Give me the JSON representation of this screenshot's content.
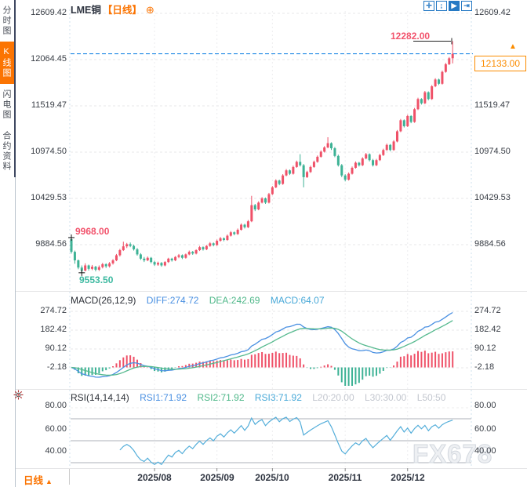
{
  "sidebar": {
    "tabs": [
      {
        "label": "分时图",
        "active": false
      },
      {
        "label": "K线图",
        "active": true
      },
      {
        "label": "闪电图",
        "active": false
      },
      {
        "label": "合约资料",
        "active": false
      }
    ]
  },
  "header": {
    "symbol": "LME铜",
    "period_tag": "【日线】",
    "add_glyph": "⊕"
  },
  "toolbar": {
    "items": [
      {
        "name": "crosshair-icon",
        "glyph": "✛",
        "active": false
      },
      {
        "name": "axis-zoom-icon",
        "glyph": "↨",
        "active": false
      },
      {
        "name": "pan-icon",
        "glyph": "▶",
        "active": true
      },
      {
        "name": "exit-chart-icon",
        "glyph": "⇥",
        "active": false
      }
    ]
  },
  "main_chart": {
    "left_axis": [
      "12609.42",
      "12064.45",
      "11519.47",
      "10974.50",
      "10429.53",
      "9884.56"
    ],
    "right_axis": [
      "12609.42",
      "11519.47",
      "10974.50",
      "10429.53",
      "9884.56"
    ],
    "current_price": "12133.00",
    "current_price_arrow": "▲",
    "high_annotation": "12282.00",
    "first_high_label": "9968.00",
    "low_label": "9553.50"
  },
  "macd_panel": {
    "title": "MACD(26,12,9)",
    "diff_label": "DIFF:274.72",
    "dea_label": "DEA:242.69",
    "macd_label": "MACD:64.07",
    "left_axis": [
      "274.72",
      "182.42",
      "90.12",
      "-2.18"
    ],
    "right_axis": [
      "274.72",
      "182.42",
      "90.12",
      "-2.18"
    ]
  },
  "rsi_panel": {
    "title": "RSI(14,14,14)",
    "rsi1_label": "RSI1:71.92",
    "rsi2_label": "RSI2:71.92",
    "rsi3_label": "RSI3:71.92",
    "l20_label": "L20:20.00",
    "l30_label": "L30:30.00",
    "l50_label": "L50:50",
    "left_axis": [
      "80.00",
      "60.00",
      "40.00"
    ],
    "right_axis": [
      "80.00",
      "60.00",
      "40.00"
    ]
  },
  "bottom_bar": {
    "period": "日线",
    "period_arrow": "▲",
    "dates": [
      "2025/08",
      "2025/09",
      "2025/10",
      "2025/11",
      "2025/12"
    ]
  },
  "watermark": "FX678",
  "colors": {
    "up": "#ef5168",
    "down": "#3db295",
    "accent": "#fb7402",
    "diff_line": "#4a90e2",
    "dea_line": "#55b98e",
    "rsi_line": "#54aeda",
    "current_line": "#1e88e5",
    "annotation": "#222222"
  },
  "chart_data": {
    "type": "candlestick",
    "symbol": "LME铜",
    "period": "日线",
    "title": "LME铜【日线】",
    "y_axis_values": [
      12609.42,
      12064.45,
      11519.47,
      10974.5,
      10429.53,
      9884.56
    ],
    "price_high": 12282.0,
    "price_low": 9553.5,
    "first_bar_high": 9968.0,
    "last_close": 12133.0,
    "month_labels": [
      "2025/08",
      "2025/09",
      "2025/10",
      "2025/11",
      "2025/12"
    ],
    "month_start_indices": [
      24,
      42,
      58,
      79,
      97
    ],
    "macd": {
      "fast": 26,
      "slow": 12,
      "signal": 9,
      "diff": 274.72,
      "dea": 242.69,
      "macd": 64.07,
      "axis_values": [
        274.72,
        182.42,
        90.12,
        -2.18
      ]
    },
    "rsi": {
      "periods": [
        14,
        14,
        14
      ],
      "rsi1": 71.92,
      "rsi2": 71.92,
      "rsi3": 71.92,
      "levels": [
        80,
        60,
        40
      ],
      "thresholds": {
        "L20": 20.0,
        "L30": 30.0,
        "L50": 50
      }
    },
    "candles": [
      [
        9950,
        9968,
        9780,
        9800
      ],
      [
        9800,
        9815,
        9660,
        9700
      ],
      [
        9700,
        9710,
        9595,
        9615
      ],
      [
        9615,
        9640,
        9553.5,
        9580
      ],
      [
        9580,
        9665,
        9570,
        9640
      ],
      [
        9640,
        9650,
        9580,
        9600
      ],
      [
        9600,
        9645,
        9585,
        9625
      ],
      [
        9625,
        9635,
        9570,
        9590
      ],
      [
        9590,
        9640,
        9575,
        9620
      ],
      [
        9620,
        9670,
        9605,
        9655
      ],
      [
        9655,
        9665,
        9610,
        9630
      ],
      [
        9630,
        9680,
        9615,
        9665
      ],
      [
        9665,
        9715,
        9650,
        9700
      ],
      [
        9700,
        9775,
        9690,
        9760
      ],
      [
        9760,
        9835,
        9745,
        9820
      ],
      [
        9820,
        9920,
        9810,
        9865
      ],
      [
        9865,
        9905,
        9845,
        9890
      ],
      [
        9890,
        9910,
        9855,
        9870
      ],
      [
        9870,
        9885,
        9815,
        9830
      ],
      [
        9830,
        9845,
        9755,
        9770
      ],
      [
        9770,
        9785,
        9705,
        9720
      ],
      [
        9720,
        9740,
        9680,
        9700
      ],
      [
        9700,
        9745,
        9690,
        9730
      ],
      [
        9730,
        9740,
        9665,
        9680
      ],
      [
        9680,
        9695,
        9635,
        9650
      ],
      [
        9650,
        9685,
        9635,
        9670
      ],
      [
        9670,
        9680,
        9625,
        9640
      ],
      [
        9640,
        9690,
        9630,
        9680
      ],
      [
        9680,
        9730,
        9670,
        9720
      ],
      [
        9720,
        9730,
        9685,
        9700
      ],
      [
        9700,
        9750,
        9690,
        9740
      ],
      [
        9740,
        9775,
        9725,
        9760
      ],
      [
        9760,
        9770,
        9715,
        9730
      ],
      [
        9730,
        9780,
        9720,
        9770
      ],
      [
        9770,
        9815,
        9760,
        9800
      ],
      [
        9800,
        9810,
        9765,
        9780
      ],
      [
        9780,
        9830,
        9770,
        9820
      ],
      [
        9820,
        9870,
        9810,
        9855
      ],
      [
        9855,
        9865,
        9815,
        9830
      ],
      [
        9830,
        9880,
        9820,
        9870
      ],
      [
        9870,
        9915,
        9860,
        9900
      ],
      [
        9900,
        9910,
        9865,
        9880
      ],
      [
        9880,
        9945,
        9870,
        9930
      ],
      [
        9930,
        9975,
        9920,
        9960
      ],
      [
        9960,
        9970,
        9925,
        9940
      ],
      [
        9940,
        10005,
        9930,
        9990
      ],
      [
        9990,
        10045,
        9980,
        10030
      ],
      [
        10030,
        10040,
        9995,
        10010
      ],
      [
        10010,
        10075,
        10000,
        10060
      ],
      [
        10060,
        10135,
        10050,
        10120
      ],
      [
        10120,
        10130,
        10075,
        10090
      ],
      [
        10090,
        10175,
        10080,
        10160
      ],
      [
        10160,
        10460,
        10150,
        10350
      ],
      [
        10350,
        10365,
        10280,
        10300
      ],
      [
        10300,
        10395,
        10290,
        10380
      ],
      [
        10380,
        10445,
        10370,
        10430
      ],
      [
        10430,
        10440,
        10365,
        10380
      ],
      [
        10380,
        10495,
        10370,
        10480
      ],
      [
        10480,
        10575,
        10470,
        10560
      ],
      [
        10560,
        10655,
        10550,
        10640
      ],
      [
        10640,
        10650,
        10585,
        10600
      ],
      [
        10600,
        10715,
        10590,
        10700
      ],
      [
        10700,
        10775,
        10690,
        10760
      ],
      [
        10760,
        10770,
        10705,
        10720
      ],
      [
        10720,
        10815,
        10710,
        10800
      ],
      [
        10800,
        10875,
        10790,
        10860
      ],
      [
        10860,
        10950,
        10805,
        10820
      ],
      [
        10820,
        10835,
        10560,
        10680
      ],
      [
        10680,
        10755,
        10670,
        10740
      ],
      [
        10740,
        10815,
        10730,
        10800
      ],
      [
        10800,
        10875,
        10790,
        10860
      ],
      [
        10860,
        10935,
        10850,
        10920
      ],
      [
        10920,
        10995,
        10910,
        10980
      ],
      [
        10980,
        11045,
        10970,
        11030
      ],
      [
        11030,
        11150,
        11020,
        11080
      ],
      [
        11080,
        11090,
        11000,
        11020
      ],
      [
        11020,
        11035,
        10915,
        10930
      ],
      [
        10930,
        10945,
        10805,
        10820
      ],
      [
        10820,
        10835,
        10680,
        10700
      ],
      [
        10700,
        10715,
        10630,
        10650
      ],
      [
        10650,
        10735,
        10640,
        10720
      ],
      [
        10720,
        10805,
        10710,
        10790
      ],
      [
        10790,
        10865,
        10780,
        10850
      ],
      [
        10850,
        10860,
        10805,
        10820
      ],
      [
        10820,
        10915,
        10810,
        10900
      ],
      [
        10900,
        10965,
        10890,
        10950
      ],
      [
        10950,
        10960,
        10865,
        10880
      ],
      [
        10880,
        10895,
        10805,
        10820
      ],
      [
        10820,
        10895,
        10810,
        10880
      ],
      [
        10880,
        10955,
        10870,
        10940
      ],
      [
        10940,
        11015,
        10930,
        11000
      ],
      [
        11000,
        11075,
        10990,
        11060
      ],
      [
        11060,
        11070,
        10985,
        11000
      ],
      [
        11000,
        11115,
        10990,
        11100
      ],
      [
        11100,
        11235,
        11090,
        11220
      ],
      [
        11220,
        11365,
        11210,
        11350
      ],
      [
        11350,
        11360,
        11265,
        11280
      ],
      [
        11280,
        11415,
        11270,
        11400
      ],
      [
        11400,
        11410,
        11315,
        11330
      ],
      [
        11330,
        11495,
        11320,
        11480
      ],
      [
        11480,
        11615,
        11470,
        11600
      ],
      [
        11600,
        11610,
        11535,
        11550
      ],
      [
        11550,
        11695,
        11540,
        11680
      ],
      [
        11680,
        11690,
        11585,
        11600
      ],
      [
        11600,
        11765,
        11590,
        11750
      ],
      [
        11750,
        11845,
        11740,
        11830
      ],
      [
        11830,
        11840,
        11765,
        11780
      ],
      [
        11780,
        11935,
        11770,
        11920
      ],
      [
        11920,
        12025,
        11910,
        12010
      ],
      [
        12010,
        12095,
        12000,
        12080
      ],
      [
        12080,
        12282,
        12020,
        12133
      ]
    ]
  }
}
